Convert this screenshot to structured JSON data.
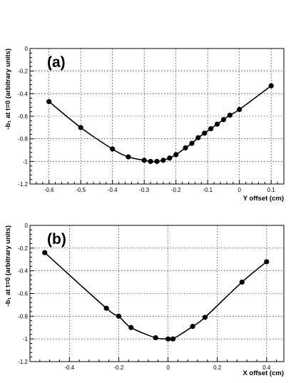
{
  "chart_data": [
    {
      "type": "scatter",
      "panel_label": "(a)",
      "xlabel": "Y offset (cm)",
      "ylabel": "-b₁ at t=0   (arbitrary units)",
      "xlim": [
        -0.66,
        0.14
      ],
      "ylim": [
        -1.2,
        0
      ],
      "xticks": [
        -0.6,
        -0.5,
        -0.4,
        -0.3,
        -0.2,
        -0.1,
        0,
        0.1
      ],
      "xtick_labels": [
        "-0.6",
        "-0.5",
        "-0.4",
        "-0.3",
        "-0.2",
        "-0.1",
        "0",
        "0.1"
      ],
      "yticks": [
        0,
        -0.2,
        -0.4,
        -0.6,
        -0.8,
        -1,
        -1.2
      ],
      "ytick_labels": [
        "0",
        "-0.2",
        "-0.4",
        "-0.6",
        "-0.8",
        "-1",
        "-1.2"
      ],
      "grid": true,
      "series": [
        {
          "x": [
            -0.6,
            -0.5,
            -0.4,
            -0.35,
            -0.3,
            -0.28,
            -0.26,
            -0.24,
            -0.22,
            -0.2,
            -0.17,
            -0.15,
            -0.13,
            -0.11,
            -0.09,
            -0.07,
            -0.05,
            -0.03,
            0,
            0.1
          ],
          "y": [
            -0.47,
            -0.7,
            -0.89,
            -0.96,
            -0.99,
            -1.0,
            -1.0,
            -0.99,
            -0.97,
            -0.94,
            -0.88,
            -0.84,
            -0.79,
            -0.75,
            -0.71,
            -0.67,
            -0.63,
            -0.59,
            -0.54,
            -0.33
          ]
        }
      ]
    },
    {
      "type": "scatter",
      "panel_label": "(b)",
      "xlabel": "X offset (cm)",
      "ylabel": "-b₁ at t=0   (arbitrary units)",
      "xlim": [
        -0.56,
        0.47
      ],
      "ylim": [
        -1.2,
        0
      ],
      "xticks": [
        -0.4,
        -0.2,
        0,
        0.2,
        0.4
      ],
      "xtick_labels": [
        "-0.4",
        "-0.2",
        "0",
        "0.2",
        "0.4"
      ],
      "yticks": [
        0,
        -0.2,
        -0.4,
        -0.6,
        -0.8,
        -1,
        -1.2
      ],
      "ytick_labels": [
        "0",
        "-0.2",
        "-0.4",
        "-0.6",
        "-0.8",
        "-1",
        "-1.2"
      ],
      "grid": true,
      "series": [
        {
          "x": [
            -0.5,
            -0.25,
            -0.2,
            -0.15,
            -0.05,
            0,
            0.02,
            0.1,
            0.15,
            0.3,
            0.4
          ],
          "y": [
            -0.24,
            -0.73,
            -0.8,
            -0.9,
            -0.99,
            -1.0,
            -1.0,
            -0.89,
            -0.81,
            -0.5,
            -0.32
          ]
        }
      ]
    }
  ]
}
